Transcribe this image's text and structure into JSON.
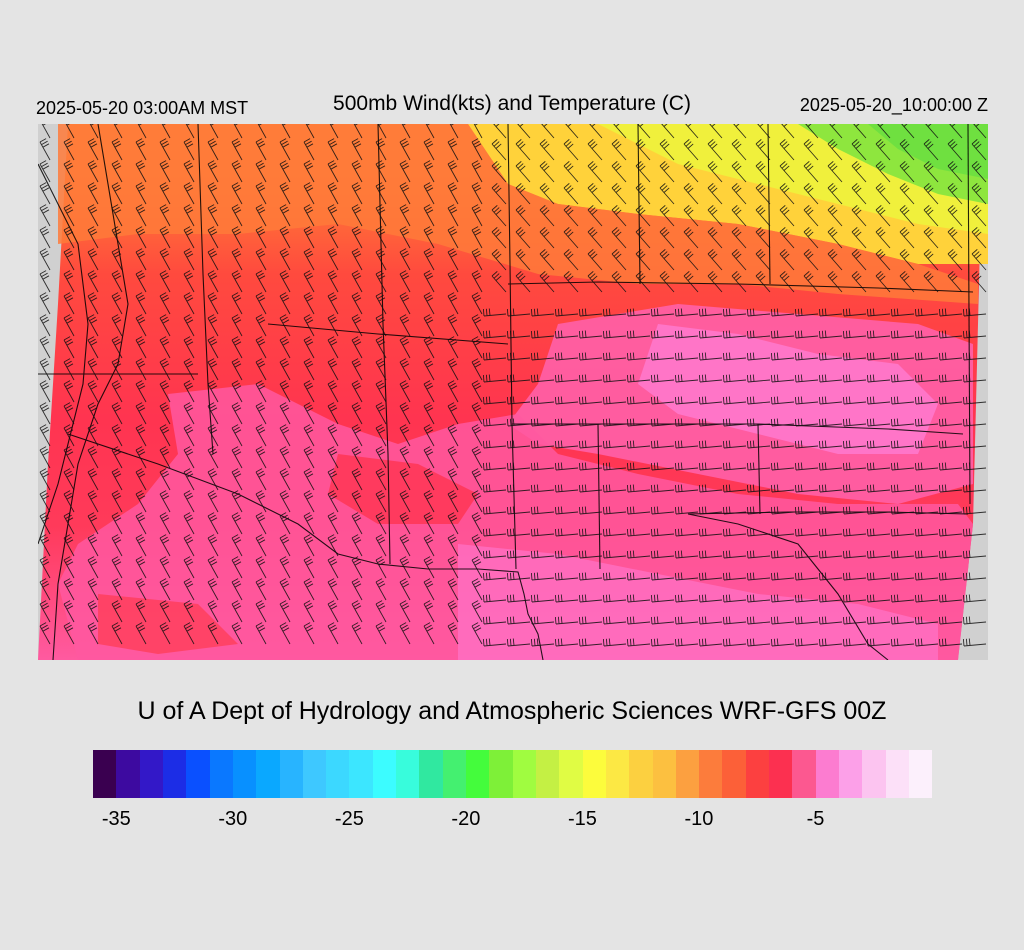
{
  "header": {
    "local_time": "2025-05-20 03:00AM MST",
    "title": "500mb Wind(kts) and Temperature (C)",
    "valid_time": "2025-05-20_10:00:00 Z"
  },
  "credit": "U of A Dept of Hydrology and Atmospheric Sciences WRF-GFS 00Z",
  "map": {
    "field": "500mb temperature (C) with wind barbs (kts)",
    "colors": {
      "coldest_region": "#7fe04a",
      "cool_band": "#ffe030",
      "orange_band": "#ff8a3a",
      "red_band": "#ff4040",
      "crimson_band": "#ff3050",
      "pink_band": "#ff5fa0",
      "light_pink_band": "#ff7ad0",
      "border_lines": "#000000",
      "outside_domain": "#d0d0d0"
    }
  },
  "colorbar": {
    "colors": [
      "#3a0050",
      "#3d0aa0",
      "#3318c8",
      "#1c2de6",
      "#0a50ff",
      "#0a78ff",
      "#0890ff",
      "#0aa8ff",
      "#28b4ff",
      "#3ec8ff",
      "#3cd8ff",
      "#3ce6ff",
      "#3cfcff",
      "#38fcdc",
      "#30e8a0",
      "#44f070",
      "#44fc3c",
      "#7ef038",
      "#a0fc40",
      "#c4f044",
      "#e0fc44",
      "#fcfc3c",
      "#fce844",
      "#fcd040",
      "#fcc040",
      "#fca040",
      "#fc7c3c",
      "#fc6038",
      "#fc4040",
      "#fc3050",
      "#fc5890",
      "#fc7cd0",
      "#fca0e8",
      "#fcc4f0",
      "#fce0f8",
      "#fcf0fc"
    ],
    "ticks": [
      "-35",
      "-30",
      "-25",
      "-20",
      "-15",
      "-10",
      "-5"
    ],
    "tick_values": [
      -35,
      -30,
      -25,
      -20,
      -15,
      -10,
      -5
    ],
    "min": -36,
    "max": 0
  }
}
